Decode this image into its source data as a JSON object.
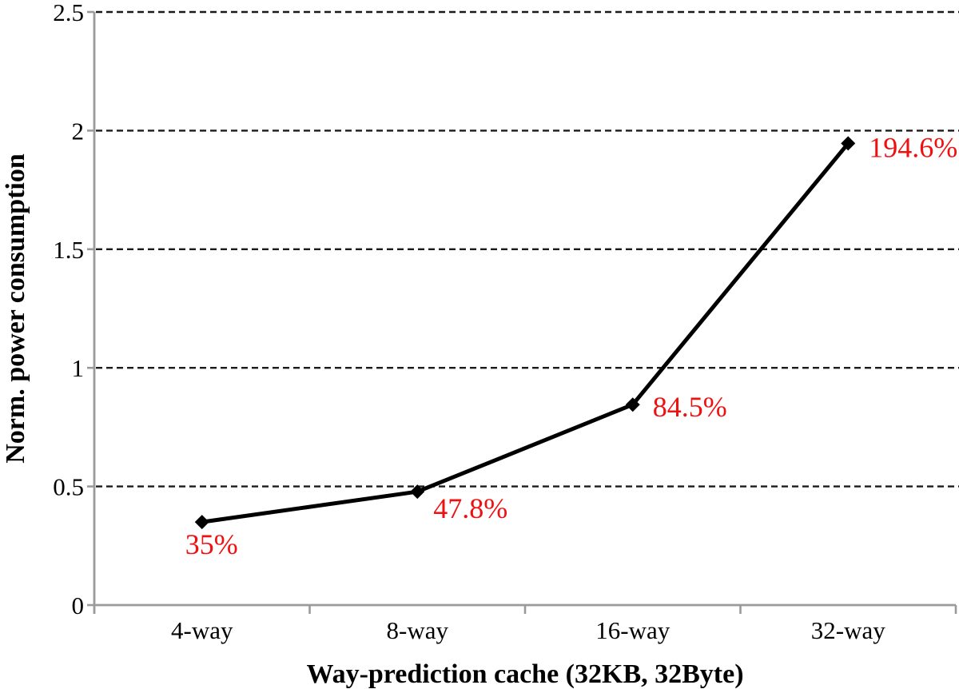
{
  "chart_data": {
    "type": "line",
    "categories": [
      "4-way",
      "8-way",
      "16-way",
      "32-way"
    ],
    "series": [
      {
        "name": "Norm. power consumption",
        "values": [
          0.35,
          0.478,
          0.845,
          1.946
        ],
        "point_labels": [
          "35%",
          "47.8%",
          "84.5%",
          "194.6%"
        ]
      }
    ],
    "title": "",
    "xlabel": "Way-prediction cache (32KB, 32Byte)",
    "ylabel": "Norm. power consumption",
    "ylim": [
      0,
      2.5
    ],
    "y_ticks": [
      0,
      0.5,
      1,
      1.5,
      2,
      2.5
    ],
    "y_tick_labels": [
      "0",
      "0.5",
      "1",
      "1.5",
      "2",
      "2.5"
    ],
    "grid": "horizontal-dashed",
    "legend": "none",
    "marker": "diamond",
    "colors": {
      "line": "#000000",
      "marker": "#000000",
      "point_label": "#ee1111",
      "axis": "#9a9a9a",
      "gridline": "#1a1a1a",
      "text": "#000000"
    }
  }
}
